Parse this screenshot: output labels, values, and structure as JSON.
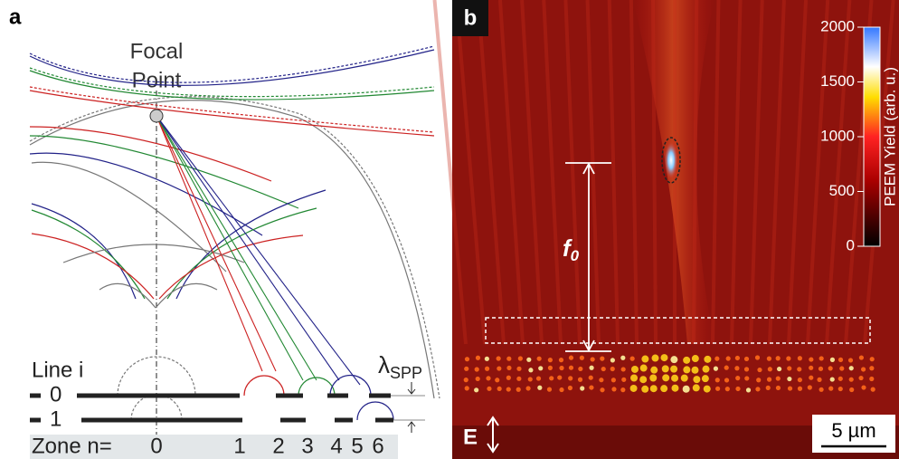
{
  "panel_a": {
    "label": "a",
    "focal_point": [
      "Focal",
      "Point"
    ],
    "line_label": "Line i",
    "lines": [
      "0",
      "1"
    ],
    "lambda": "λ",
    "lambda_sub": "SPP",
    "zone_label": "Zone n=",
    "zones": [
      "0",
      "1",
      "2",
      "3",
      "4",
      "5",
      "6"
    ]
  },
  "panel_b": {
    "label": "b",
    "focal_length": "f",
    "focal_length_sub": "0",
    "polarization": "E",
    "scale_bar": "5 µm",
    "colorbar": {
      "label": "PEEM Yield (arb. u.)",
      "ticks": [
        2000,
        1500,
        1000,
        500,
        0
      ]
    }
  }
}
